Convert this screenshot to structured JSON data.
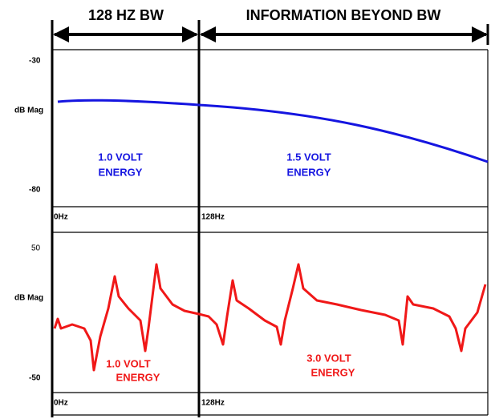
{
  "header": {
    "left": "128 HZ BW",
    "right": "INFORMATION BEYOND BW"
  },
  "panels": [
    {
      "y_top": "-30",
      "y_label": "dB Mag",
      "y_bottom": "-80",
      "x_left": "0Hz",
      "x_mid": "128Hz",
      "left_note": [
        "1.0 VOLT",
        "ENERGY"
      ],
      "right_note": [
        "1.5 VOLT",
        "ENERGY"
      ]
    },
    {
      "y_top": "50",
      "y_label": "dB Mag",
      "y_bottom": "-50",
      "x_left": "0Hz",
      "x_mid": "128Hz",
      "left_note": [
        "1.0 VOLT",
        "ENERGY"
      ],
      "right_note": [
        "3.0 VOLT",
        "ENERGY"
      ]
    }
  ]
}
